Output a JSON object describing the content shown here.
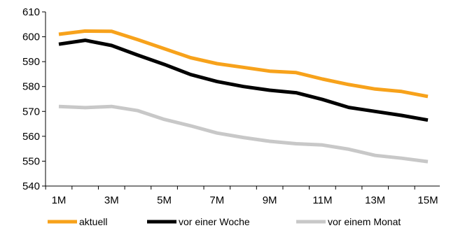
{
  "chart_data": {
    "type": "line",
    "x": [
      "1M",
      "2M",
      "3M",
      "4M",
      "5M",
      "6M",
      "7M",
      "8M",
      "9M",
      "10M",
      "11M",
      "12M",
      "13M",
      "14M",
      "15M"
    ],
    "x_tick_labels": [
      "1M",
      "3M",
      "5M",
      "7M",
      "9M",
      "11M",
      "13M",
      "15M"
    ],
    "ylim": [
      540,
      610
    ],
    "y_ticks": [
      540,
      550,
      560,
      570,
      580,
      590,
      600,
      610
    ],
    "grid": false,
    "legend_position": "bottom",
    "series": [
      {
        "name": "aktuell",
        "color": "#f7a21b",
        "values": [
          601,
          602.3,
          602.2,
          598.8,
          595.2,
          591.6,
          589.2,
          587.7,
          586.2,
          585.6,
          583,
          580.8,
          579,
          578,
          576
        ]
      },
      {
        "name": "vor einer Woche",
        "color": "#000000",
        "values": [
          597,
          598.6,
          596.5,
          592.6,
          588.9,
          584.8,
          582,
          580,
          578.5,
          577.5,
          574.8,
          571.6,
          570,
          568.4,
          566.5
        ]
      },
      {
        "name": "vor einem Monat",
        "color": "#c8c8c8",
        "values": [
          572,
          571.5,
          572,
          570.3,
          566.8,
          564.2,
          561.3,
          559.5,
          558,
          557,
          556.5,
          554.8,
          552.3,
          551.2,
          549.8
        ]
      }
    ]
  }
}
